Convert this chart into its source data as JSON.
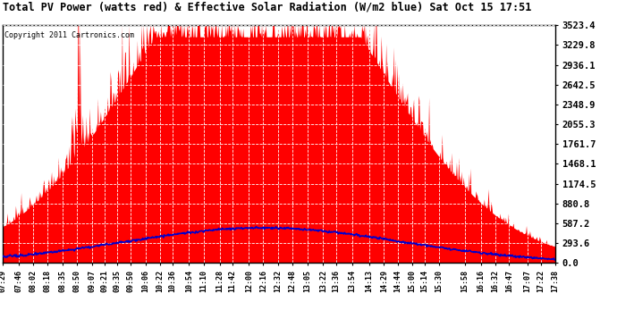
{
  "title": "Total PV Power (watts red) & Effective Solar Radiation (W/m2 blue) Sat Oct 15 17:51",
  "copyright": "Copyright 2011 Cartronics.com",
  "background_color": "#ffffff",
  "plot_bg_color": "#ffffff",
  "grid_color": "#aaaaaa",
  "ytick_values": [
    0.0,
    293.6,
    587.2,
    880.8,
    1174.5,
    1468.1,
    1761.7,
    2055.3,
    2348.9,
    2642.5,
    2936.1,
    3229.8,
    3523.4
  ],
  "ymax": 3523.4,
  "ymin": 0.0,
  "red_color": "#ff0000",
  "blue_color": "#0000cc",
  "x_tick_labels": [
    "07:29",
    "07:46",
    "08:02",
    "08:18",
    "08:35",
    "08:50",
    "09:07",
    "09:21",
    "09:35",
    "09:50",
    "10:06",
    "10:22",
    "10:36",
    "10:54",
    "11:10",
    "11:28",
    "11:42",
    "12:00",
    "12:16",
    "12:32",
    "12:48",
    "13:05",
    "13:22",
    "13:36",
    "13:54",
    "14:13",
    "14:29",
    "14:44",
    "15:00",
    "15:14",
    "15:30",
    "15:58",
    "16:16",
    "16:32",
    "16:47",
    "17:07",
    "17:22",
    "17:38"
  ]
}
